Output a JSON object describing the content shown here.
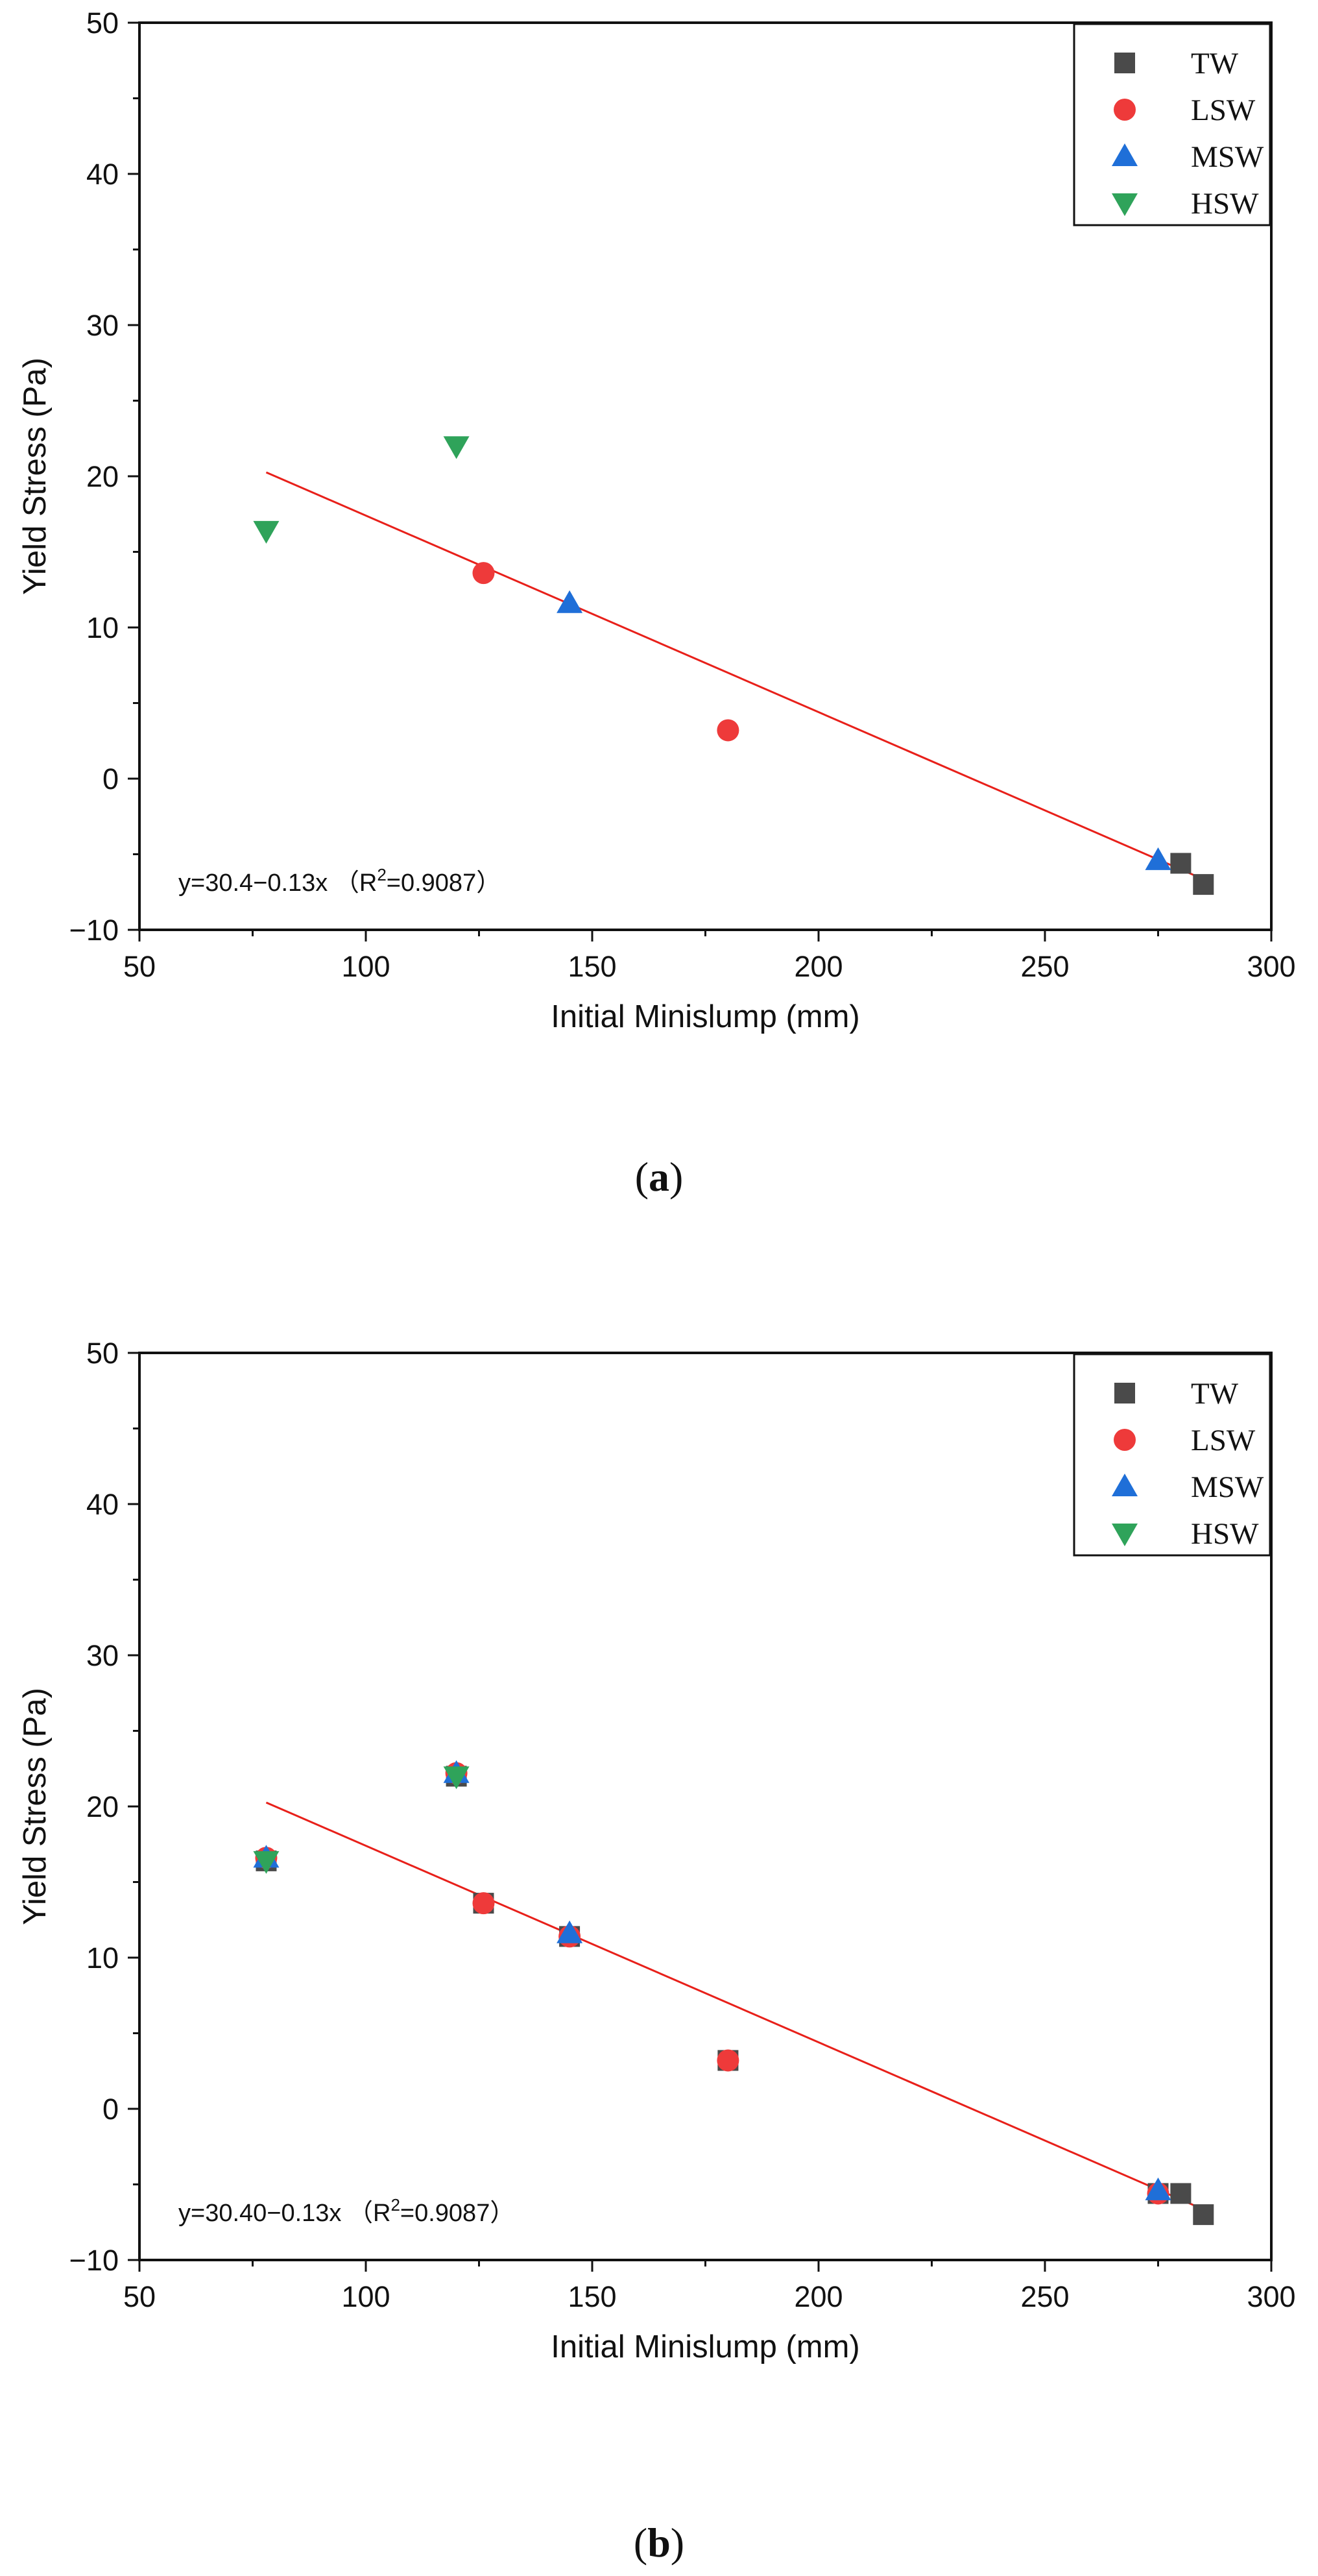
{
  "colors": {
    "TW": "#4a4a4a",
    "LSW": "#ee3a3a",
    "MSW": "#1f6fd8",
    "HSW": "#2fa35a",
    "fit_line": "#e8201a",
    "axis": "#111111"
  },
  "chart_data": [
    {
      "panel": "a",
      "panel_label": {
        "open": "(",
        "letter": "a",
        "close": ")"
      },
      "type": "scatter",
      "xlabel": "Initial Minislump (mm)",
      "ylabel": "Yield Stress (Pa)",
      "xlim": [
        50,
        300
      ],
      "ylim": [
        -10,
        50
      ],
      "xticks": [
        50,
        100,
        150,
        200,
        250,
        300
      ],
      "yticks": [
        -10,
        0,
        10,
        20,
        30,
        40,
        50
      ],
      "xtick_labels": [
        "50",
        "100",
        "150",
        "200",
        "250",
        "300"
      ],
      "ytick_labels": [
        "−10",
        "0",
        "10",
        "20",
        "30",
        "40",
        "50"
      ],
      "legend_position": "top-right",
      "series": [
        {
          "name": "TW",
          "marker": "square",
          "points": [
            [
              280,
              -5.6
            ],
            [
              285,
              -7.0
            ]
          ]
        },
        {
          "name": "LSW",
          "marker": "circle",
          "points": [
            [
              126,
              13.6
            ],
            [
              180,
              3.2
            ]
          ]
        },
        {
          "name": "MSW",
          "marker": "triangle-up",
          "points": [
            [
              145,
              11.6
            ],
            [
              275,
              -5.4
            ]
          ]
        },
        {
          "name": "HSW",
          "marker": "triangle-down",
          "points": [
            [
              78,
              16.4
            ],
            [
              120,
              22.0
            ]
          ]
        }
      ],
      "fit": {
        "intercept": 30.4,
        "slope": -0.13,
        "x_range": [
          78,
          285
        ],
        "equation_main": "y=30.4−0.13x （R",
        "equation_sup": "2",
        "equation_tail": "=0.9087）"
      }
    },
    {
      "panel": "b",
      "panel_label": {
        "open": "(",
        "letter": "b",
        "close": ")"
      },
      "type": "scatter",
      "xlabel": "Initial Minislump (mm)",
      "ylabel": "Yield Stress (Pa)",
      "xlim": [
        50,
        300
      ],
      "ylim": [
        -10,
        50
      ],
      "xticks": [
        50,
        100,
        150,
        200,
        250,
        300
      ],
      "yticks": [
        -10,
        0,
        10,
        20,
        30,
        40,
        50
      ],
      "xtick_labels": [
        "50",
        "100",
        "150",
        "200",
        "250",
        "300"
      ],
      "ytick_labels": [
        "−10",
        "0",
        "10",
        "20",
        "30",
        "40",
        "50"
      ],
      "legend_position": "top-right",
      "series": [
        {
          "name": "TW",
          "marker": "square",
          "points": [
            [
              78,
              16.4
            ],
            [
              120,
              22.0
            ],
            [
              126,
              13.6
            ],
            [
              145,
              11.4
            ],
            [
              180,
              3.2
            ],
            [
              275,
              -5.6
            ],
            [
              280,
              -5.6
            ],
            [
              285,
              -7.0
            ]
          ]
        },
        {
          "name": "LSW",
          "marker": "circle",
          "points": [
            [
              78,
              16.6
            ],
            [
              120,
              22.2
            ],
            [
              126,
              13.6
            ],
            [
              145,
              11.4
            ],
            [
              180,
              3.2
            ],
            [
              275,
              -5.6
            ]
          ]
        },
        {
          "name": "MSW",
          "marker": "triangle-up",
          "points": [
            [
              78,
              16.6
            ],
            [
              120,
              22.2
            ],
            [
              145,
              11.6
            ],
            [
              275,
              -5.4
            ]
          ]
        },
        {
          "name": "HSW",
          "marker": "triangle-down",
          "points": [
            [
              78,
              16.4
            ],
            [
              120,
              22.0
            ]
          ]
        }
      ],
      "fit": {
        "intercept": 30.4,
        "slope": -0.13,
        "x_range": [
          78,
          285
        ],
        "equation_main": "y=30.40−0.13x （R",
        "equation_sup": "2",
        "equation_tail": "=0.9087）"
      }
    }
  ]
}
